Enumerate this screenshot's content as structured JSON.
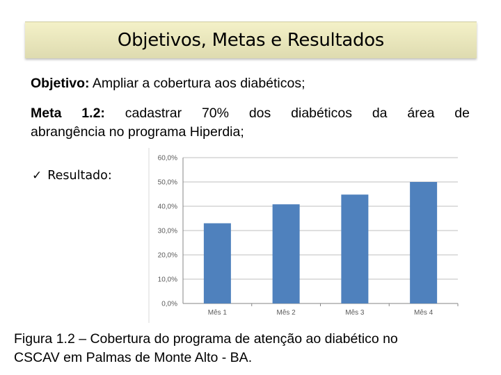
{
  "slide": {
    "title": "Objetivos, Metas e Resultados",
    "objective_label": "Objetivo:",
    "objective_text": "Ampliar a cobertura aos diabéticos;",
    "goal_label": "Meta 1.2:",
    "goal_text_line1": "cadastrar 70% dos diabéticos da área de",
    "goal_text_line2": "abrangência no programa Hiperdia;",
    "result_label": "Resultado:",
    "result_icon": "checkmark-icon",
    "caption_line1": "Figura 1.2 – Cobertura do programa de atenção ao diabético no",
    "caption_line2": "CSCAV em Palmas de Monte Alto - BA."
  },
  "colors": {
    "title_bar": "#e9e6bd",
    "bar": "#4f81bd",
    "gridline": "#bfbfbf",
    "tick_text": "#595959"
  },
  "chart_data": {
    "type": "bar",
    "categories": [
      "Mês 1",
      "Mês 2",
      "Mês 3",
      "Mês 4"
    ],
    "values": [
      33.0,
      40.8,
      44.8,
      50.0
    ],
    "ylim": [
      0,
      60
    ],
    "yticks": [
      "0,0%",
      "10,0%",
      "20,0%",
      "30,0%",
      "40,0%",
      "50,0%",
      "60,0%"
    ],
    "grid": true,
    "legend": "none"
  }
}
